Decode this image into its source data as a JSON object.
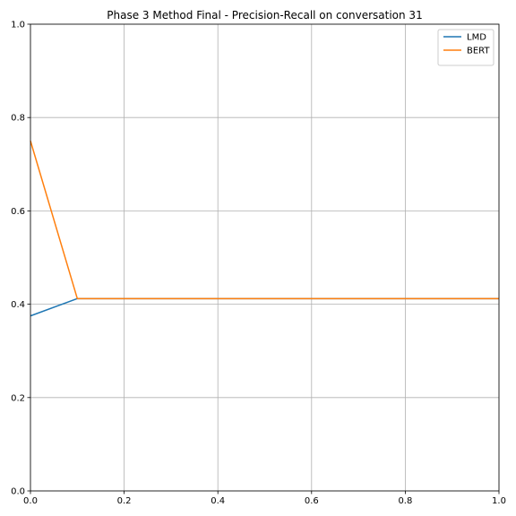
{
  "chart_data": {
    "type": "line",
    "title": "Phase 3 Method Final - Precision-Recall on conversation 31",
    "xlabel": "",
    "ylabel": "",
    "xlim": [
      0.0,
      1.0
    ],
    "ylim": [
      0.0,
      1.0
    ],
    "xticks": [
      "0.0",
      "0.2",
      "0.4",
      "0.6",
      "0.8",
      "1.0"
    ],
    "yticks": [
      "0.0",
      "0.2",
      "0.4",
      "0.6",
      "0.8",
      "1.0"
    ],
    "grid": true,
    "legend_position": "top-right",
    "series": [
      {
        "name": "LMD",
        "color": "#1f77b4",
        "x": [
          0.0,
          0.1,
          1.0
        ],
        "y": [
          0.375,
          0.412,
          0.412
        ]
      },
      {
        "name": "BERT",
        "color": "#ff7f0e",
        "x": [
          0.0,
          0.1,
          1.0
        ],
        "y": [
          0.75,
          0.412,
          0.412
        ]
      }
    ]
  }
}
